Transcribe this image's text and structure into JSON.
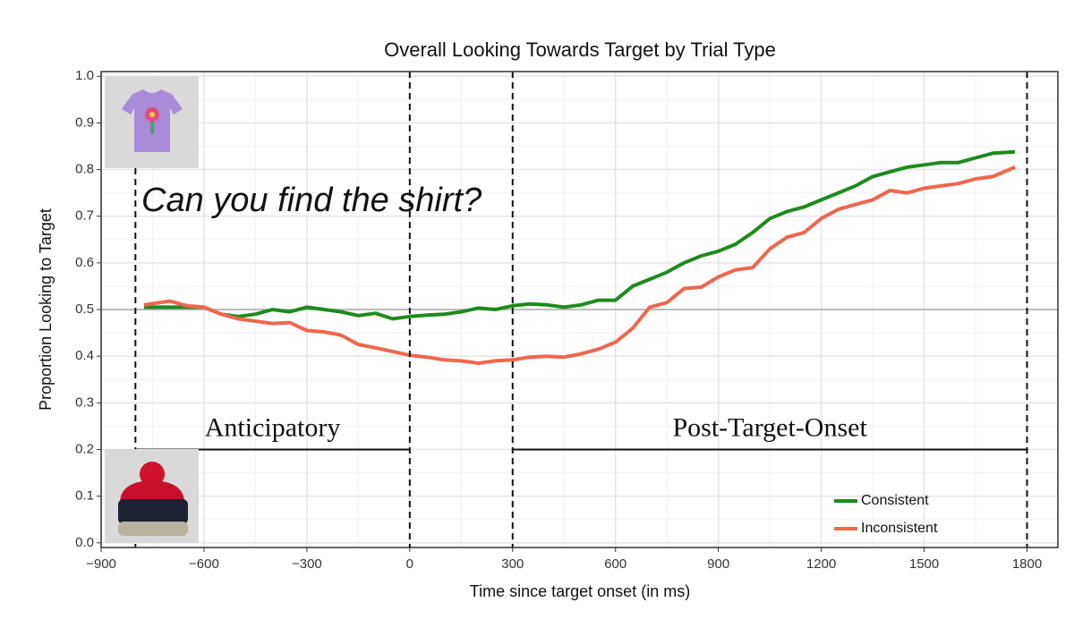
{
  "chart_data": {
    "type": "line",
    "title": "Overall Looking Towards Target by Trial Type",
    "x_label": "Time since target onset (in ms)",
    "y_label": "Proportion Looking to Target",
    "x": [
      -775,
      -700,
      -650,
      -600,
      -550,
      -500,
      -450,
      -400,
      -350,
      -300,
      -250,
      -200,
      -150,
      -100,
      -50,
      0,
      50,
      100,
      150,
      200,
      250,
      300,
      350,
      400,
      450,
      500,
      550,
      600,
      650,
      700,
      750,
      800,
      850,
      900,
      950,
      1000,
      1050,
      1100,
      1150,
      1200,
      1250,
      1300,
      1350,
      1400,
      1450,
      1500,
      1550,
      1600,
      1650,
      1700,
      1765
    ],
    "series": [
      {
        "name": "Consistent",
        "color": "#1f8a1f",
        "values": [
          0.505,
          0.505,
          0.505,
          0.505,
          0.49,
          0.485,
          0.49,
          0.5,
          0.495,
          0.505,
          0.5,
          0.495,
          0.487,
          0.492,
          0.48,
          0.485,
          0.488,
          0.49,
          0.495,
          0.503,
          0.5,
          0.508,
          0.512,
          0.51,
          0.505,
          0.51,
          0.52,
          0.52,
          0.55,
          0.565,
          0.58,
          0.6,
          0.615,
          0.625,
          0.64,
          0.665,
          0.695,
          0.71,
          0.72,
          0.735,
          0.75,
          0.765,
          0.785,
          0.795,
          0.805,
          0.81,
          0.815,
          0.815,
          0.825,
          0.835,
          0.838
        ]
      },
      {
        "name": "Inconsistent",
        "color": "#f0664f",
        "values": [
          0.51,
          0.518,
          0.508,
          0.505,
          0.49,
          0.48,
          0.475,
          0.47,
          0.472,
          0.455,
          0.452,
          0.445,
          0.425,
          0.418,
          0.41,
          0.402,
          0.398,
          0.392,
          0.39,
          0.385,
          0.39,
          0.392,
          0.398,
          0.4,
          0.398,
          0.405,
          0.415,
          0.43,
          0.46,
          0.505,
          0.515,
          0.545,
          0.548,
          0.57,
          0.585,
          0.59,
          0.63,
          0.655,
          0.665,
          0.695,
          0.715,
          0.725,
          0.735,
          0.755,
          0.75,
          0.76,
          0.765,
          0.77,
          0.78,
          0.785,
          0.805
        ]
      }
    ],
    "xlim": [
      -900,
      1890
    ],
    "ylim": [
      -0.01,
      1.01
    ],
    "xticks": [
      {
        "value": -900,
        "label": "−900"
      },
      {
        "value": -600,
        "label": "−600"
      },
      {
        "value": -300,
        "label": "−300"
      },
      0,
      300,
      600,
      900,
      1200,
      1500,
      1800
    ],
    "yticks": [
      {
        "value": 0,
        "label": "0.0"
      },
      0.1,
      0.2,
      0.3,
      0.4,
      0.5,
      0.6,
      0.7,
      0.8,
      0.9,
      {
        "value": 1,
        "label": "1.0"
      }
    ],
    "grid": true,
    "legend": "bottom-right",
    "vlines": [
      -800,
      0,
      300,
      1800
    ],
    "hline": 0.5,
    "annotation": "Can you find the shirt?",
    "periods": [
      {
        "label": "Anticipatory",
        "start": -800,
        "end": 0,
        "y": 0.2
      },
      {
        "label": "Post-Target-Onset",
        "start": 300,
        "end": 1800,
        "y": 0.2
      }
    ]
  }
}
